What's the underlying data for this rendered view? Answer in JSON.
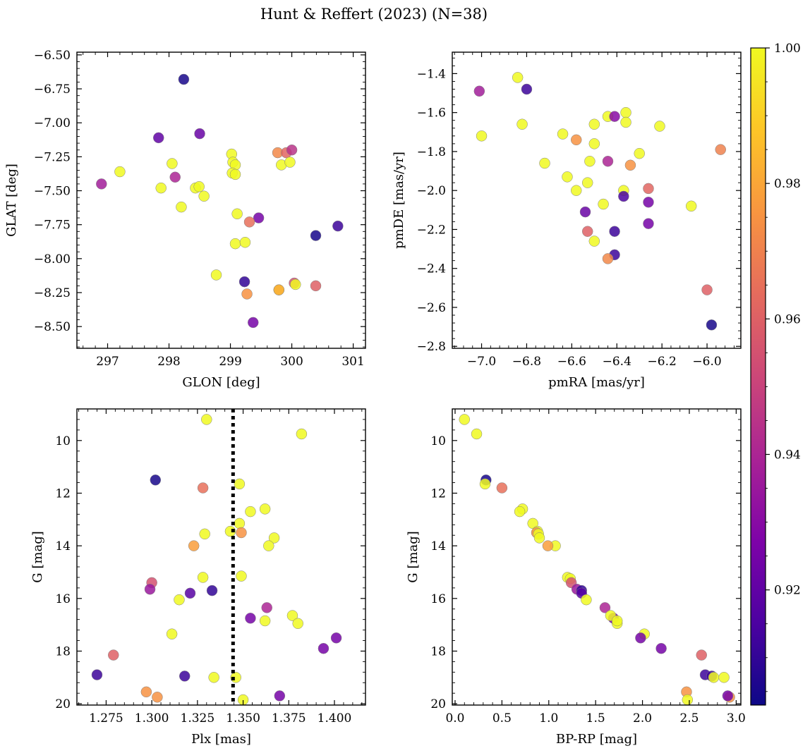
{
  "figure": {
    "title": "Hunt & Reffert (2023) (N=38)",
    "colormap": "plasma",
    "colorbar": {
      "min": 0.903,
      "max": 1.0,
      "ticks": [
        0.92,
        0.94,
        0.96,
        0.98,
        1.0
      ],
      "tick_labels": [
        "0.92",
        "0.94",
        "0.96",
        "0.98",
        "1.00"
      ]
    }
  },
  "chart_data": [
    {
      "id": "glon_glat",
      "type": "scatter",
      "title": "",
      "xlabel": "GLON [deg]",
      "ylabel": "GLAT [deg]",
      "xlim": [
        296.5,
        301.2
      ],
      "ylim": [
        -8.66,
        -6.48
      ],
      "y_inverted": false,
      "grid": false,
      "xticks": [
        297,
        298,
        299,
        300,
        301
      ],
      "xtick_labels": [
        "297",
        "298",
        "299",
        "300",
        "301"
      ],
      "yticks": [
        -6.5,
        -6.75,
        -7.0,
        -7.25,
        -7.5,
        -7.75,
        -8.0,
        -8.25,
        -8.5
      ],
      "ytick_labels": [
        "−6.50",
        "−6.75",
        "−7.00",
        "−7.25",
        "−7.50",
        "−7.75",
        "−8.00",
        "−8.25",
        "−8.50"
      ],
      "points": [
        {
          "x": 298.24,
          "y": -6.68,
          "c": 0.905
        },
        {
          "x": 297.83,
          "y": -7.11,
          "c": 0.92
        },
        {
          "x": 298.5,
          "y": -7.08,
          "c": 0.922
        },
        {
          "x": 297.2,
          "y": -7.36,
          "c": 1.0
        },
        {
          "x": 296.9,
          "y": -7.45,
          "c": 0.937
        },
        {
          "x": 297.87,
          "y": -7.48,
          "c": 1.0
        },
        {
          "x": 298.05,
          "y": -7.3,
          "c": 1.0
        },
        {
          "x": 298.1,
          "y": -7.4,
          "c": 0.94
        },
        {
          "x": 298.2,
          "y": -7.62,
          "c": 1.0
        },
        {
          "x": 298.43,
          "y": -7.48,
          "c": 1.0
        },
        {
          "x": 298.49,
          "y": -7.47,
          "c": 1.0
        },
        {
          "x": 298.57,
          "y": -7.54,
          "c": 1.0
        },
        {
          "x": 299.02,
          "y": -7.23,
          "c": 1.0
        },
        {
          "x": 299.04,
          "y": -7.29,
          "c": 1.0
        },
        {
          "x": 299.08,
          "y": -7.31,
          "c": 1.0
        },
        {
          "x": 299.03,
          "y": -7.37,
          "c": 1.0
        },
        {
          "x": 299.08,
          "y": -7.38,
          "c": 1.0
        },
        {
          "x": 299.11,
          "y": -7.67,
          "c": 1.0
        },
        {
          "x": 299.46,
          "y": -7.7,
          "c": 0.925
        },
        {
          "x": 299.31,
          "y": -7.73,
          "c": 0.965
        },
        {
          "x": 299.08,
          "y": -7.89,
          "c": 1.0
        },
        {
          "x": 299.24,
          "y": -7.88,
          "c": 1.0
        },
        {
          "x": 298.77,
          "y": -8.12,
          "c": 1.0
        },
        {
          "x": 299.23,
          "y": -8.17,
          "c": 0.91
        },
        {
          "x": 299.27,
          "y": -8.26,
          "c": 0.975
        },
        {
          "x": 299.79,
          "y": -8.23,
          "c": 1.0
        },
        {
          "x": 299.79,
          "y": -8.23,
          "c": 0.98
        },
        {
          "x": 300.04,
          "y": -8.18,
          "c": 0.955
        },
        {
          "x": 300.06,
          "y": -8.19,
          "c": 1.0
        },
        {
          "x": 300.39,
          "y": -8.2,
          "c": 0.96
        },
        {
          "x": 299.37,
          "y": -8.47,
          "c": 0.925
        },
        {
          "x": 299.77,
          "y": -7.22,
          "c": 0.972
        },
        {
          "x": 299.91,
          "y": -7.22,
          "c": 0.962
        },
        {
          "x": 300.0,
          "y": -7.2,
          "c": 0.945
        },
        {
          "x": 299.83,
          "y": -7.31,
          "c": 1.0
        },
        {
          "x": 299.97,
          "y": -7.29,
          "c": 1.0
        },
        {
          "x": 300.39,
          "y": -7.83,
          "c": 0.905
        },
        {
          "x": 300.75,
          "y": -7.76,
          "c": 0.912
        }
      ]
    },
    {
      "id": "pm",
      "type": "scatter",
      "title": "",
      "xlabel": "pmRA [mas/yr]",
      "ylabel": "pmDE [mas/yr]",
      "xlim": [
        -7.13,
        -5.85
      ],
      "ylim": [
        -2.81,
        -1.29
      ],
      "y_inverted": false,
      "grid": false,
      "xticks": [
        -7.0,
        -6.8,
        -6.6,
        -6.4,
        -6.2,
        -6.0
      ],
      "xtick_labels": [
        "−7.0",
        "−6.8",
        "−6.6",
        "−6.4",
        "−6.2",
        "−6.0"
      ],
      "yticks": [
        -1.4,
        -1.6,
        -1.8,
        -2.0,
        -2.2,
        -2.4,
        -2.6,
        -2.8
      ],
      "ytick_labels": [
        "−1.4",
        "−1.6",
        "−1.8",
        "−2.0",
        "−2.2",
        "−2.4",
        "−2.6",
        "−2.8"
      ],
      "points": [
        {
          "x": -6.84,
          "y": -1.42,
          "c": 1.0
        },
        {
          "x": -7.01,
          "y": -1.49,
          "c": 0.937
        },
        {
          "x": -6.8,
          "y": -1.48,
          "c": 0.912
        },
        {
          "x": -7.0,
          "y": -1.72,
          "c": 1.0
        },
        {
          "x": -6.82,
          "y": -1.66,
          "c": 1.0
        },
        {
          "x": -6.72,
          "y": -1.86,
          "c": 1.0
        },
        {
          "x": -6.64,
          "y": -1.71,
          "c": 1.0
        },
        {
          "x": -6.58,
          "y": -1.74,
          "c": 0.975
        },
        {
          "x": -6.5,
          "y": -1.66,
          "c": 1.0
        },
        {
          "x": -6.44,
          "y": -1.62,
          "c": 1.0
        },
        {
          "x": -6.41,
          "y": -1.62,
          "c": 0.93
        },
        {
          "x": -6.36,
          "y": -1.6,
          "c": 1.0
        },
        {
          "x": -6.36,
          "y": -1.65,
          "c": 1.0
        },
        {
          "x": -6.21,
          "y": -1.67,
          "c": 1.0
        },
        {
          "x": -6.5,
          "y": -1.76,
          "c": 1.0
        },
        {
          "x": -6.52,
          "y": -1.85,
          "c": 1.0
        },
        {
          "x": -6.44,
          "y": -1.85,
          "c": 0.94
        },
        {
          "x": -6.3,
          "y": -1.81,
          "c": 1.0
        },
        {
          "x": -6.34,
          "y": -1.87,
          "c": 0.975
        },
        {
          "x": -5.94,
          "y": -1.79,
          "c": 0.97
        },
        {
          "x": -6.62,
          "y": -1.93,
          "c": 1.0
        },
        {
          "x": -6.58,
          "y": -2.0,
          "c": 1.0
        },
        {
          "x": -6.53,
          "y": -1.96,
          "c": 1.0
        },
        {
          "x": -6.37,
          "y": -2.0,
          "c": 1.0
        },
        {
          "x": -6.37,
          "y": -2.03,
          "c": 0.915
        },
        {
          "x": -6.26,
          "y": -1.99,
          "c": 0.962
        },
        {
          "x": -6.46,
          "y": -2.07,
          "c": 1.0
        },
        {
          "x": -6.26,
          "y": -2.06,
          "c": 0.925
        },
        {
          "x": -6.07,
          "y": -2.08,
          "c": 1.0
        },
        {
          "x": -6.54,
          "y": -2.11,
          "c": 0.922
        },
        {
          "x": -6.53,
          "y": -2.21,
          "c": 0.96
        },
        {
          "x": -6.41,
          "y": -2.21,
          "c": 0.912
        },
        {
          "x": -6.26,
          "y": -2.17,
          "c": 0.925
        },
        {
          "x": -6.5,
          "y": -2.26,
          "c": 1.0
        },
        {
          "x": -6.41,
          "y": -2.33,
          "c": 0.912
        },
        {
          "x": -6.44,
          "y": -2.35,
          "c": 0.972
        },
        {
          "x": -6.0,
          "y": -2.51,
          "c": 0.96
        },
        {
          "x": -5.98,
          "y": -2.69,
          "c": 0.905
        }
      ]
    },
    {
      "id": "plx_g",
      "type": "scatter",
      "title": "",
      "xlabel": "Plx [mas]",
      "ylabel": "G [mag]",
      "xlim": [
        1.259,
        1.417
      ],
      "ylim": [
        20.05,
        8.8
      ],
      "y_inverted": true,
      "grid": false,
      "xticks": [
        1.275,
        1.3,
        1.325,
        1.35,
        1.375,
        1.4
      ],
      "xtick_labels": [
        "1.275",
        "1.300",
        "1.325",
        "1.350",
        "1.375",
        "1.400"
      ],
      "yticks": [
        10,
        12,
        14,
        16,
        18,
        20
      ],
      "ytick_labels": [
        "10",
        "12",
        "14",
        "16",
        "18",
        "20"
      ],
      "vline": {
        "x": 1.3445,
        "style": "dotted"
      },
      "points": [
        {
          "x": 1.33,
          "y": 9.2,
          "c": 1.0
        },
        {
          "x": 1.382,
          "y": 9.75,
          "c": 1.0
        },
        {
          "x": 1.302,
          "y": 11.5,
          "c": 0.905
        },
        {
          "x": 1.328,
          "y": 11.8,
          "c": 0.965
        },
        {
          "x": 1.348,
          "y": 11.65,
          "c": 1.0
        },
        {
          "x": 1.362,
          "y": 12.6,
          "c": 1.0
        },
        {
          "x": 1.354,
          "y": 12.7,
          "c": 1.0
        },
        {
          "x": 1.348,
          "y": 13.15,
          "c": 1.0
        },
        {
          "x": 1.343,
          "y": 13.45,
          "c": 1.0
        },
        {
          "x": 1.349,
          "y": 13.5,
          "c": 0.975
        },
        {
          "x": 1.329,
          "y": 13.55,
          "c": 1.0
        },
        {
          "x": 1.367,
          "y": 13.7,
          "c": 1.0
        },
        {
          "x": 1.364,
          "y": 14.0,
          "c": 1.0
        },
        {
          "x": 1.323,
          "y": 14.0,
          "c": 0.978
        },
        {
          "x": 1.328,
          "y": 15.2,
          "c": 1.0
        },
        {
          "x": 1.349,
          "y": 15.15,
          "c": 1.0
        },
        {
          "x": 1.3,
          "y": 15.4,
          "c": 0.955
        },
        {
          "x": 1.299,
          "y": 15.65,
          "c": 0.935
        },
        {
          "x": 1.333,
          "y": 15.7,
          "c": 0.91
        },
        {
          "x": 1.321,
          "y": 15.8,
          "c": 0.918
        },
        {
          "x": 1.315,
          "y": 16.05,
          "c": 1.0
        },
        {
          "x": 1.363,
          "y": 16.35,
          "c": 0.94
        },
        {
          "x": 1.354,
          "y": 16.75,
          "c": 0.925
        },
        {
          "x": 1.362,
          "y": 16.85,
          "c": 1.0
        },
        {
          "x": 1.377,
          "y": 16.65,
          "c": 1.0
        },
        {
          "x": 1.38,
          "y": 16.95,
          "c": 1.0
        },
        {
          "x": 1.311,
          "y": 17.35,
          "c": 1.0
        },
        {
          "x": 1.394,
          "y": 17.9,
          "c": 0.925
        },
        {
          "x": 1.401,
          "y": 17.5,
          "c": 0.925
        },
        {
          "x": 1.279,
          "y": 18.15,
          "c": 0.96
        },
        {
          "x": 1.27,
          "y": 18.9,
          "c": 0.912
        },
        {
          "x": 1.318,
          "y": 18.95,
          "c": 0.912
        },
        {
          "x": 1.334,
          "y": 19.0,
          "c": 1.0
        },
        {
          "x": 1.346,
          "y": 19.0,
          "c": 1.0
        },
        {
          "x": 1.297,
          "y": 19.55,
          "c": 0.975
        },
        {
          "x": 1.303,
          "y": 19.75,
          "c": 0.975
        },
        {
          "x": 1.35,
          "y": 19.85,
          "c": 1.0
        },
        {
          "x": 1.37,
          "y": 19.7,
          "c": 0.925
        }
      ]
    },
    {
      "id": "bprp_g",
      "type": "scatter",
      "title": "",
      "xlabel": "BP-RP [mag]",
      "ylabel": "G [mag]",
      "xlim": [
        -0.03,
        3.05
      ],
      "ylim": [
        20.05,
        8.8
      ],
      "y_inverted": true,
      "grid": false,
      "xticks": [
        0.0,
        0.5,
        1.0,
        1.5,
        2.0,
        2.5,
        3.0
      ],
      "xtick_labels": [
        "0.0",
        "0.5",
        "1.0",
        "1.5",
        "2.0",
        "2.5",
        "3.0"
      ],
      "yticks": [
        10,
        12,
        14,
        16,
        18,
        20
      ],
      "ytick_labels": [
        "10",
        "12",
        "14",
        "16",
        "18",
        "20"
      ],
      "points": [
        {
          "x": 0.1,
          "y": 9.2,
          "c": 1.0
        },
        {
          "x": 0.23,
          "y": 9.75,
          "c": 1.0
        },
        {
          "x": 0.33,
          "y": 11.5,
          "c": 0.905
        },
        {
          "x": 0.5,
          "y": 11.8,
          "c": 0.965
        },
        {
          "x": 0.32,
          "y": 11.65,
          "c": 1.0
        },
        {
          "x": 0.72,
          "y": 12.6,
          "c": 1.0
        },
        {
          "x": 0.69,
          "y": 12.7,
          "c": 1.0
        },
        {
          "x": 0.83,
          "y": 13.15,
          "c": 1.0
        },
        {
          "x": 0.88,
          "y": 13.45,
          "c": 1.0
        },
        {
          "x": 0.87,
          "y": 13.5,
          "c": 0.975
        },
        {
          "x": 0.89,
          "y": 13.55,
          "c": 1.0
        },
        {
          "x": 0.9,
          "y": 13.7,
          "c": 1.0
        },
        {
          "x": 1.07,
          "y": 14.0,
          "c": 1.0
        },
        {
          "x": 0.99,
          "y": 14.0,
          "c": 0.978
        },
        {
          "x": 1.2,
          "y": 15.2,
          "c": 1.0
        },
        {
          "x": 1.23,
          "y": 15.25,
          "c": 1.0
        },
        {
          "x": 1.24,
          "y": 15.4,
          "c": 0.955
        },
        {
          "x": 1.3,
          "y": 15.65,
          "c": 0.935
        },
        {
          "x": 1.35,
          "y": 15.7,
          "c": 0.91
        },
        {
          "x": 1.35,
          "y": 15.8,
          "c": 0.918
        },
        {
          "x": 1.4,
          "y": 16.05,
          "c": 1.0
        },
        {
          "x": 1.6,
          "y": 16.35,
          "c": 0.94
        },
        {
          "x": 1.69,
          "y": 16.75,
          "c": 0.925
        },
        {
          "x": 1.73,
          "y": 16.95,
          "c": 1.0
        },
        {
          "x": 1.66,
          "y": 16.65,
          "c": 1.0
        },
        {
          "x": 1.73,
          "y": 16.85,
          "c": 1.0
        },
        {
          "x": 2.02,
          "y": 17.35,
          "c": 1.0
        },
        {
          "x": 2.2,
          "y": 17.9,
          "c": 0.925
        },
        {
          "x": 1.98,
          "y": 17.5,
          "c": 0.925
        },
        {
          "x": 2.63,
          "y": 18.15,
          "c": 0.96
        },
        {
          "x": 2.67,
          "y": 18.9,
          "c": 0.912
        },
        {
          "x": 2.74,
          "y": 18.95,
          "c": 0.912
        },
        {
          "x": 2.76,
          "y": 19.0,
          "c": 1.0
        },
        {
          "x": 2.87,
          "y": 19.0,
          "c": 1.0
        },
        {
          "x": 2.47,
          "y": 19.55,
          "c": 0.975
        },
        {
          "x": 2.93,
          "y": 19.75,
          "c": 0.975
        },
        {
          "x": 2.48,
          "y": 19.85,
          "c": 1.0
        },
        {
          "x": 2.91,
          "y": 19.7,
          "c": 0.925
        }
      ]
    }
  ]
}
